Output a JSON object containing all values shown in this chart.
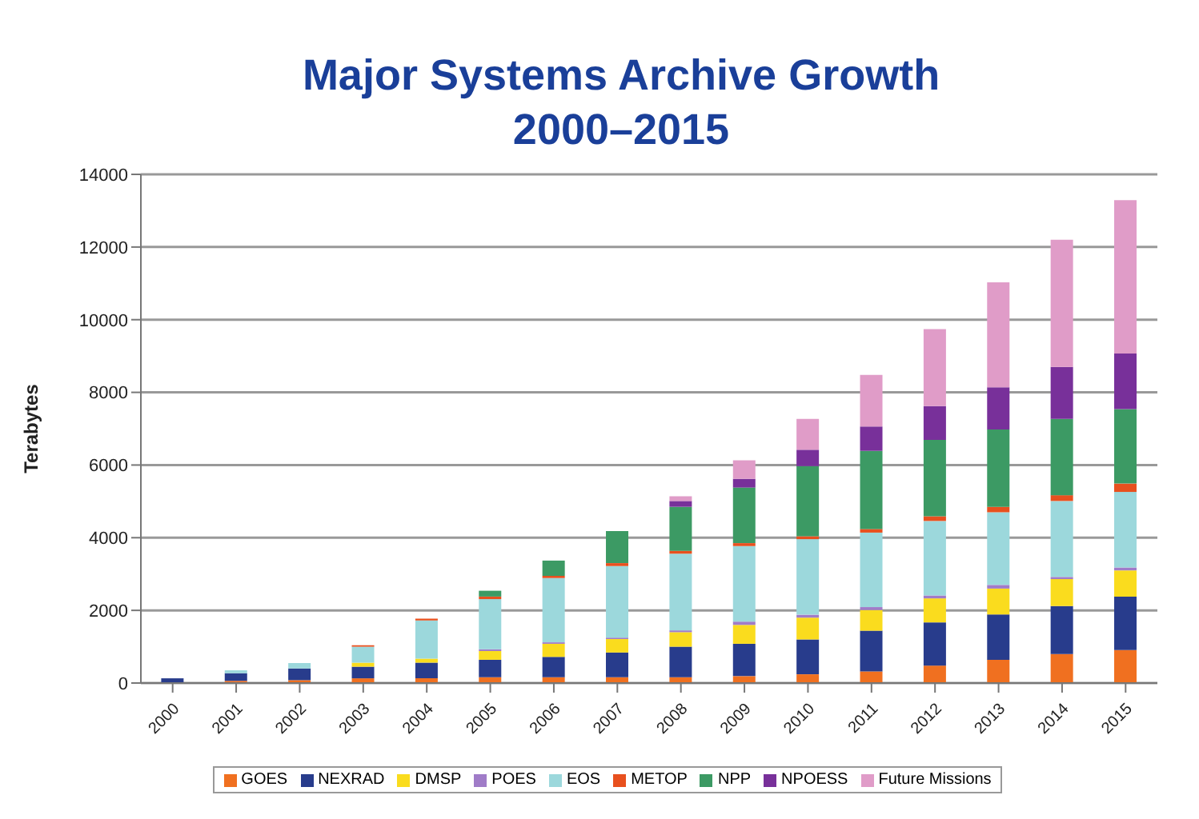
{
  "chart_data": {
    "type": "bar",
    "title": "Major Systems Archive Growth\n2000–2015",
    "ylabel": "Terabytes",
    "stacked": true,
    "categories": [
      "2000",
      "2001",
      "2002",
      "2003",
      "2004",
      "2005",
      "2006",
      "2007",
      "2008",
      "2009",
      "2010",
      "2011",
      "2012",
      "2013",
      "2014",
      "2015"
    ],
    "series": [
      {
        "name": "GOES",
        "color": "#f07020",
        "values": [
          null,
          60,
          80,
          130,
          130,
          160,
          160,
          160,
          160,
          190,
          240,
          320,
          480,
          640,
          800,
          910
        ]
      },
      {
        "name": "NEXRAD",
        "color": "#283c8c",
        "values": [
          130,
          210,
          320,
          320,
          430,
          480,
          560,
          680,
          840,
          890,
          960,
          1120,
          1190,
          1250,
          1320,
          1470
        ]
      },
      {
        "name": "DMSP",
        "color": "#fadc1e",
        "values": [
          0,
          0,
          0,
          110,
          110,
          240,
          360,
          370,
          400,
          520,
          600,
          570,
          660,
          710,
          740,
          720
        ]
      },
      {
        "name": "POES",
        "color": "#a07cc8",
        "values": [
          0,
          0,
          0,
          0,
          0,
          50,
          40,
          40,
          50,
          90,
          80,
          80,
          80,
          100,
          60,
          80
        ]
      },
      {
        "name": "EOS",
        "color": "#9cd8dc",
        "values": [
          0,
          80,
          150,
          440,
          1050,
          1380,
          1770,
          1970,
          2110,
          2080,
          2080,
          2050,
          2050,
          2000,
          2090,
          2080
        ]
      },
      {
        "name": "METOP",
        "color": "#e8501e",
        "values": [
          0,
          0,
          0,
          40,
          50,
          70,
          60,
          80,
          80,
          80,
          80,
          100,
          130,
          150,
          160,
          230
        ]
      },
      {
        "name": "NPP",
        "color": "#3c9a64",
        "values": [
          0,
          0,
          0,
          0,
          0,
          160,
          420,
          880,
          1210,
          1530,
          1930,
          2150,
          2100,
          2130,
          2100,
          2050
        ]
      },
      {
        "name": "NPOESS",
        "color": "#78309a",
        "values": [
          0,
          0,
          0,
          0,
          0,
          0,
          0,
          0,
          160,
          240,
          450,
          670,
          930,
          1160,
          1430,
          1530
        ]
      },
      {
        "name": "Future Missions",
        "color": "#e09cc8",
        "values": [
          0,
          0,
          0,
          0,
          0,
          0,
          0,
          0,
          130,
          510,
          850,
          1420,
          2120,
          2890,
          3500,
          4220
        ]
      }
    ],
    "ylim": [
      0,
      14000
    ],
    "yticks": [
      0,
      2000,
      4000,
      6000,
      8000,
      10000,
      12000,
      14000
    ],
    "grid": "y",
    "legend": "bottom"
  }
}
